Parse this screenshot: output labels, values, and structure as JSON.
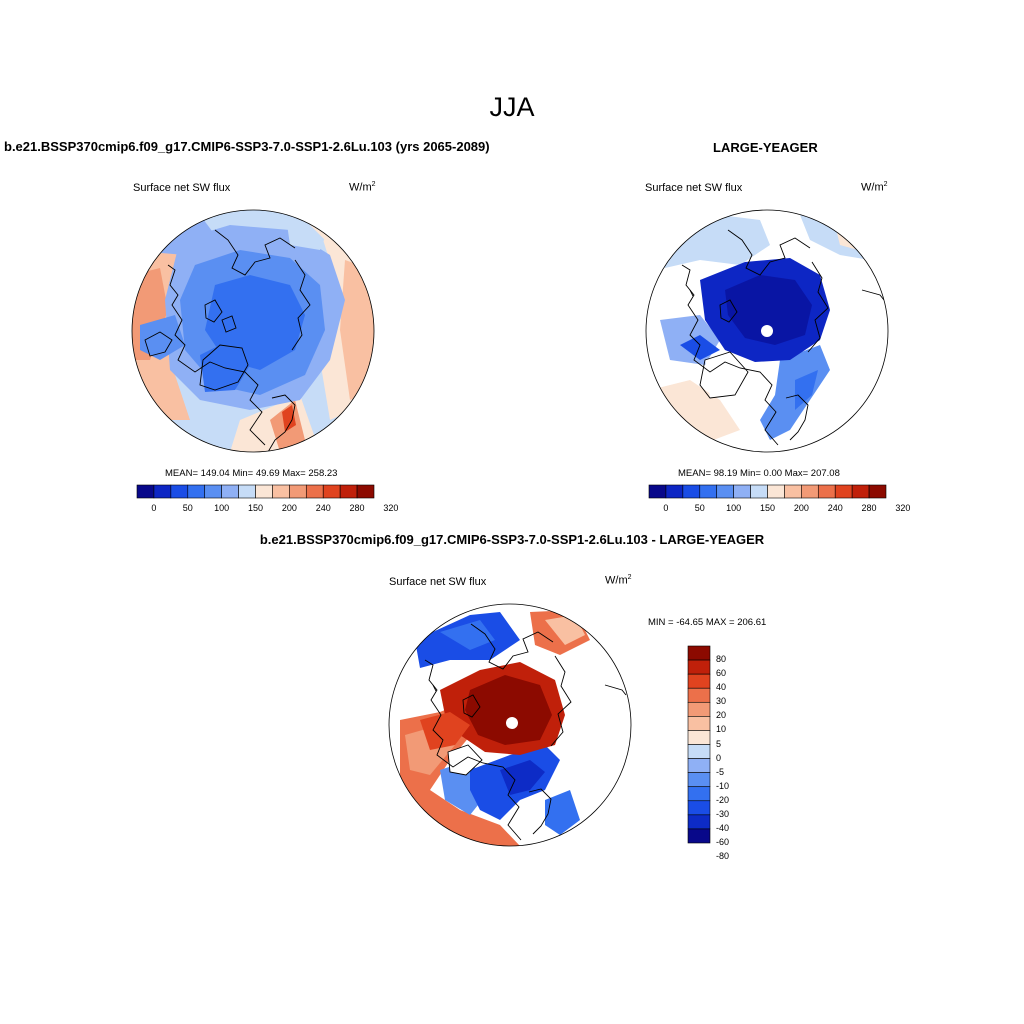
{
  "figure": {
    "main_title": "JJA",
    "colors": {
      "seq": [
        "#08088a",
        "#0d26c4",
        "#1a4de6",
        "#3370f0",
        "#5a8ff2",
        "#8fb0f5",
        "#c6dcf7",
        "#fbe6d6",
        "#f9c0a2",
        "#f29a76",
        "#ec704a",
        "#e0431f",
        "#c0200a",
        "#8c0a00"
      ],
      "diff": [
        "#08088a",
        "#0d2bc6",
        "#1a4de6",
        "#3370f0",
        "#5a8ff2",
        "#8fb0f5",
        "#c6dcf7",
        "#fbe6d6",
        "#f9c0a2",
        "#f29a76",
        "#ec704a",
        "#e0431f",
        "#c0200a",
        "#8c0a00"
      ]
    },
    "panels": {
      "left": {
        "title": "b.e21.BSSP370cmip6.f09_g17.CMIP6-SSP3-7.0-SSP1-2.6Lu.103 (yrs 2065-2089)",
        "variable": "Surface net SW flux",
        "units": "W/m",
        "units_exp": "2",
        "stats": "MEAN= 149.04  Min=  49.69  Max= 258.23",
        "colorbar_ticks": [
          "0",
          "50",
          "100",
          "150",
          "200",
          "240",
          "280",
          "320"
        ]
      },
      "right": {
        "title": "LARGE-YEAGER",
        "variable": "Surface net SW flux",
        "units": "W/m",
        "units_exp": "2",
        "stats": "MEAN=  98.19  Min=   0.00  Max= 207.08",
        "colorbar_ticks": [
          "0",
          "50",
          "100",
          "150",
          "200",
          "240",
          "280",
          "320"
        ]
      },
      "diff": {
        "title": "b.e21.BSSP370cmip6.f09_g17.CMIP6-SSP3-7.0-SSP1-2.6Lu.103 - LARGE-YEAGER",
        "variable": "Surface net SW flux",
        "units": "W/m",
        "units_exp": "2",
        "stats": "MIN = -64.65 MAX = 206.61",
        "colorbar_ticks": [
          "80",
          "60",
          "40",
          "30",
          "20",
          "10",
          "5",
          "0",
          "-5",
          "-10",
          "-20",
          "-30",
          "-40",
          "-60",
          "-80"
        ]
      }
    }
  }
}
